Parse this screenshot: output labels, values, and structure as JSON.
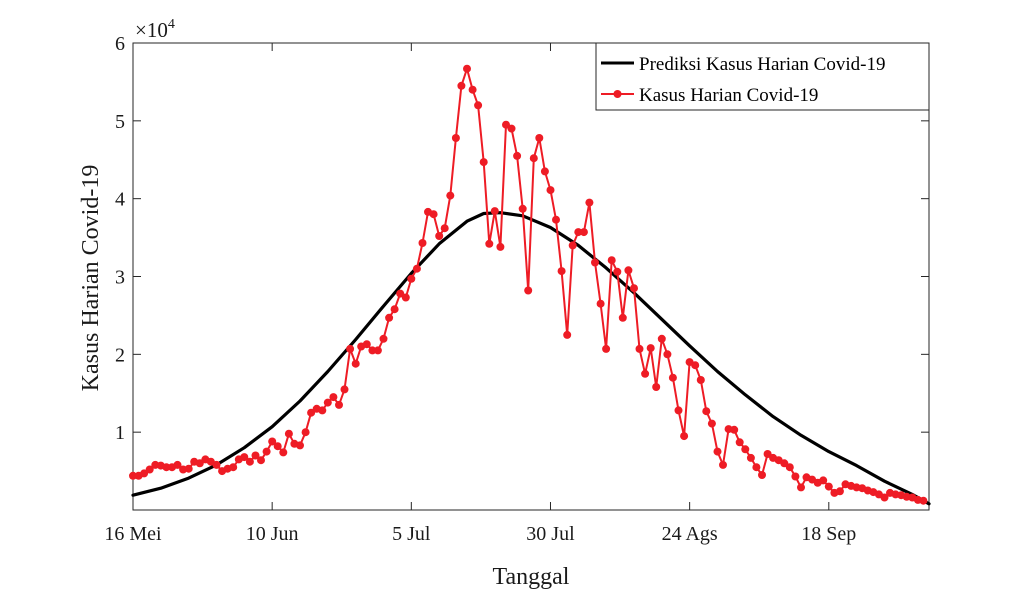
{
  "chart_data": {
    "type": "line",
    "xlabel": "Tanggal",
    "ylabel": "Kasus Harian Covid-19",
    "y_multiplier": "×10",
    "y_multiplier_exp": "4",
    "xlim": [
      0,
      143
    ],
    "ylim": [
      0,
      6
    ],
    "x_ticks": [
      {
        "day": 0,
        "label": "16 Mei"
      },
      {
        "day": 25,
        "label": "10 Jun"
      },
      {
        "day": 50,
        "label": "5 Jul"
      },
      {
        "day": 75,
        "label": "30 Jul"
      },
      {
        "day": 100,
        "label": "24 Ags"
      },
      {
        "day": 125,
        "label": "18 Sep"
      }
    ],
    "y_ticks": [
      {
        "value": 1,
        "label": "1"
      },
      {
        "value": 2,
        "label": "2"
      },
      {
        "value": 3,
        "label": "3"
      },
      {
        "value": 4,
        "label": "4"
      },
      {
        "value": 5,
        "label": "5"
      },
      {
        "value": 6,
        "label": "6"
      }
    ],
    "legend_position": "top-right",
    "series": [
      {
        "name": "Prediksi Kasus Harian Covid-19",
        "style": "line",
        "color": "#000000",
        "x": [
          0,
          5,
          10,
          15,
          20,
          25,
          30,
          35,
          40,
          45,
          50,
          55,
          60,
          63,
          66,
          70,
          75,
          80,
          85,
          90,
          95,
          100,
          105,
          110,
          115,
          120,
          125,
          130,
          135,
          140,
          143
        ],
        "y": [
          0.19,
          0.28,
          0.41,
          0.58,
          0.8,
          1.07,
          1.4,
          1.78,
          2.19,
          2.62,
          3.04,
          3.42,
          3.71,
          3.81,
          3.82,
          3.78,
          3.63,
          3.4,
          3.11,
          2.79,
          2.45,
          2.11,
          1.78,
          1.48,
          1.2,
          0.96,
          0.75,
          0.57,
          0.37,
          0.2,
          0.08
        ]
      },
      {
        "name": "Kasus Harian Covid-19",
        "style": "line-marker",
        "color": "#ee1c25",
        "y": [
          0.44,
          0.44,
          0.47,
          0.52,
          0.58,
          0.57,
          0.55,
          0.55,
          0.58,
          0.52,
          0.53,
          0.62,
          0.6,
          0.65,
          0.62,
          0.58,
          0.5,
          0.53,
          0.55,
          0.65,
          0.68,
          0.62,
          0.7,
          0.64,
          0.75,
          0.88,
          0.82,
          0.74,
          0.98,
          0.85,
          0.83,
          1.0,
          1.25,
          1.3,
          1.28,
          1.38,
          1.45,
          1.35,
          1.55,
          2.07,
          1.88,
          2.1,
          2.13,
          2.05,
          2.05,
          2.2,
          2.47,
          2.58,
          2.78,
          2.73,
          2.97,
          3.1,
          3.43,
          3.83,
          3.8,
          3.52,
          3.62,
          4.04,
          4.78,
          5.45,
          5.67,
          5.4,
          5.2,
          4.47,
          3.42,
          3.84,
          3.38,
          4.95,
          4.9,
          4.55,
          3.87,
          2.82,
          4.52,
          4.78,
          4.35,
          4.11,
          3.73,
          3.07,
          2.25,
          3.4,
          3.57,
          3.57,
          3.95,
          3.18,
          2.65,
          2.07,
          3.21,
          3.06,
          2.47,
          3.08,
          2.85,
          2.07,
          1.75,
          2.08,
          1.58,
          2.2,
          2.0,
          1.7,
          1.28,
          0.95,
          1.9,
          1.86,
          1.67,
          1.27,
          1.11,
          0.75,
          0.58,
          1.04,
          1.03,
          0.87,
          0.78,
          0.67,
          0.55,
          0.45,
          0.72,
          0.67,
          0.64,
          0.6,
          0.55,
          0.43,
          0.29,
          0.42,
          0.39,
          0.35,
          0.38,
          0.3,
          0.22,
          0.24,
          0.33,
          0.31,
          0.29,
          0.28,
          0.25,
          0.23,
          0.2,
          0.16,
          0.22,
          0.2,
          0.19,
          0.17,
          0.16,
          0.13,
          0.12
        ]
      }
    ]
  }
}
